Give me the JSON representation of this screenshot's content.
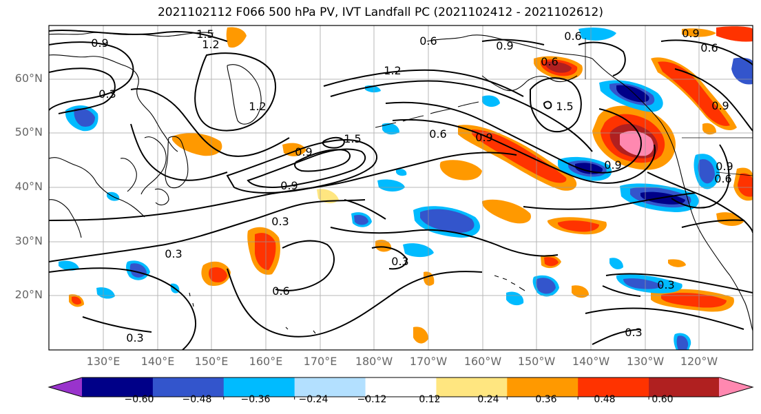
{
  "title": "2021102112 F066 500 hPa PV, IVT Landfall PC (2021102412 - 2021102612)",
  "lat_labels": [
    "60°N",
    "50°N",
    "40°N",
    "30°N",
    "20°N"
  ],
  "lon_labels": [
    "130°E",
    "140°E",
    "150°E",
    "160°E",
    "170°E",
    "180°W",
    "170°W",
    "160°W",
    "150°W",
    "140°W",
    "130°W",
    "120°W"
  ],
  "colorbar": {
    "ticks": [
      "−0.60",
      "−0.48",
      "−0.36",
      "−0.24",
      "−0.12",
      "0.12",
      "0.24",
      "0.36",
      "0.48",
      "0.60"
    ],
    "colors": [
      "#9933cc",
      "#000088",
      "#3355cc",
      "#00bbff",
      "#b3e0ff",
      "#ffffff",
      "#ffe680",
      "#ff9900",
      "#ff3300",
      "#b02020",
      "#ff88b0"
    ]
  },
  "contour_labels": [
    "1.5",
    "1.2",
    "0.9",
    "0.3",
    "0.6",
    "0.6",
    "0.9",
    "0.6",
    "0.9",
    "0.6",
    "0.6",
    "1.2",
    "1.2",
    "1.5",
    "0.9",
    "0.9",
    "0.9",
    "0.3",
    "0.6",
    "0.3",
    "0.3",
    "0.3",
    "0.6",
    "0.9",
    "0.9",
    "0.3",
    "0.9",
    "1.5",
    "0.3"
  ]
}
